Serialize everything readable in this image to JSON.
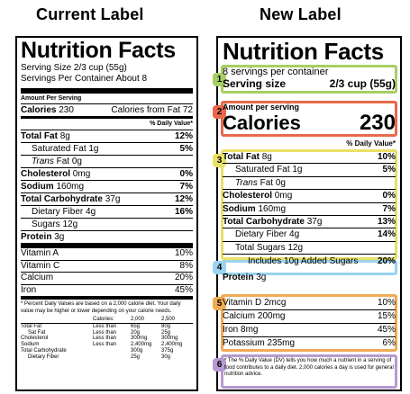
{
  "headers": {
    "current": "Current Label",
    "new": "New Label"
  },
  "colors": {
    "green": "#a8cf63",
    "red": "#e8694a",
    "yellow": "#e9e066",
    "blue": "#9ad3ef",
    "orange": "#efab53",
    "purple": "#b79ad1"
  },
  "current": {
    "title": "Nutrition Facts",
    "serving_size": "Serving Size 2/3 cup (55g)",
    "servings": "Servings Per Container About 8",
    "amount_per_serving": "Amount Per Serving",
    "calories_label": "Calories",
    "calories_value": "230",
    "calories_fat": "Calories from Fat 72",
    "dv_header": "% Daily Value*",
    "nutrients": [
      {
        "label": "Total Fat",
        "amount": "8g",
        "dv": "12%"
      },
      {
        "label": "Saturated Fat",
        "amount": "1g",
        "dv": "5%"
      },
      {
        "label": "Trans",
        "label2": "Fat 0g",
        "dv": ""
      },
      {
        "label": "Cholesterol",
        "amount": "0mg",
        "dv": "0%"
      },
      {
        "label": "Sodium",
        "amount": "160mg",
        "dv": "7%"
      },
      {
        "label": "Total Carbohydrate",
        "amount": "37g",
        "dv": "12%"
      },
      {
        "label": "Dietary Fiber",
        "amount": "4g",
        "dv": "16%"
      },
      {
        "label": "Sugars",
        "amount": "12g",
        "dv": ""
      },
      {
        "label": "Protein",
        "amount": "3g",
        "dv": ""
      }
    ],
    "vitamins": [
      {
        "label": "Vitamin A",
        "dv": "10%"
      },
      {
        "label": "Vitamin C",
        "dv": "8%"
      },
      {
        "label": "Calcium",
        "dv": "20%"
      },
      {
        "label": "Iron",
        "dv": "45%"
      }
    ],
    "footnote": "* Percent Daily Values are based on a 2,000 calorie diet. Your daily value may be higher or lower depending on your calorie needs.",
    "footer_head": [
      "",
      "Calories:",
      "2,000",
      "2,500"
    ],
    "footer_rows": [
      [
        "Total Fat",
        "Less than",
        "65g",
        "80g"
      ],
      [
        "Sat Fat",
        "Less than",
        "20g",
        "25g"
      ],
      [
        "Cholesterol",
        "Less than",
        "300mg",
        "300mg"
      ],
      [
        "Sodium",
        "Less than",
        "2,400mg",
        "2,400mg"
      ],
      [
        "Total Carbohydrate",
        "",
        "300g",
        "375g"
      ],
      [
        "Dietary Fiber",
        "",
        "25g",
        "30g"
      ]
    ]
  },
  "new": {
    "title": "Nutrition Facts",
    "servings": "8 servings per container",
    "serving_size_label": "Serving size",
    "serving_size_value": "2/3 cup (55g)",
    "amount_per_serving": "Amount per serving",
    "calories_label": "Calories",
    "calories_value": "230",
    "dv_header": "% Daily Value*",
    "nutrients": [
      {
        "label": "Total Fat",
        "amount": "8g",
        "dv": "10%"
      },
      {
        "label": "Saturated Fat",
        "amount": "1g",
        "dv": "5%"
      },
      {
        "label": "Trans",
        "label2": "Fat 0g",
        "dv": ""
      },
      {
        "label": "Cholesterol",
        "amount": "0mg",
        "dv": "0%"
      },
      {
        "label": "Sodium",
        "amount": "160mg",
        "dv": "7%"
      },
      {
        "label": "Total Carbohydrate",
        "amount": "37g",
        "dv": "13%"
      },
      {
        "label": "Dietary Fiber",
        "amount": "4g",
        "dv": "14%"
      },
      {
        "label": "Total Sugars",
        "amount": "12g",
        "dv": ""
      },
      {
        "label": "Includes 10g Added Sugars",
        "dv": "20%"
      },
      {
        "label": "Protein",
        "amount": "3g",
        "dv": ""
      }
    ],
    "vitamins": [
      {
        "label": "Vitamin D 2mcg",
        "dv": "10%"
      },
      {
        "label": "Calcium 200mg",
        "dv": "15%"
      },
      {
        "label": "Iron 8mg",
        "dv": "45%"
      },
      {
        "label": "Potassium 235mg",
        "dv": "6%"
      }
    ],
    "footnote": "* The % Daily Value (DV) tells you how much a nutrient in a serving of food contributes to a daily diet. 2,000 calories a day is used for general nutrition advice.",
    "badges": [
      "1",
      "2",
      "3",
      "4",
      "5",
      "6"
    ]
  }
}
